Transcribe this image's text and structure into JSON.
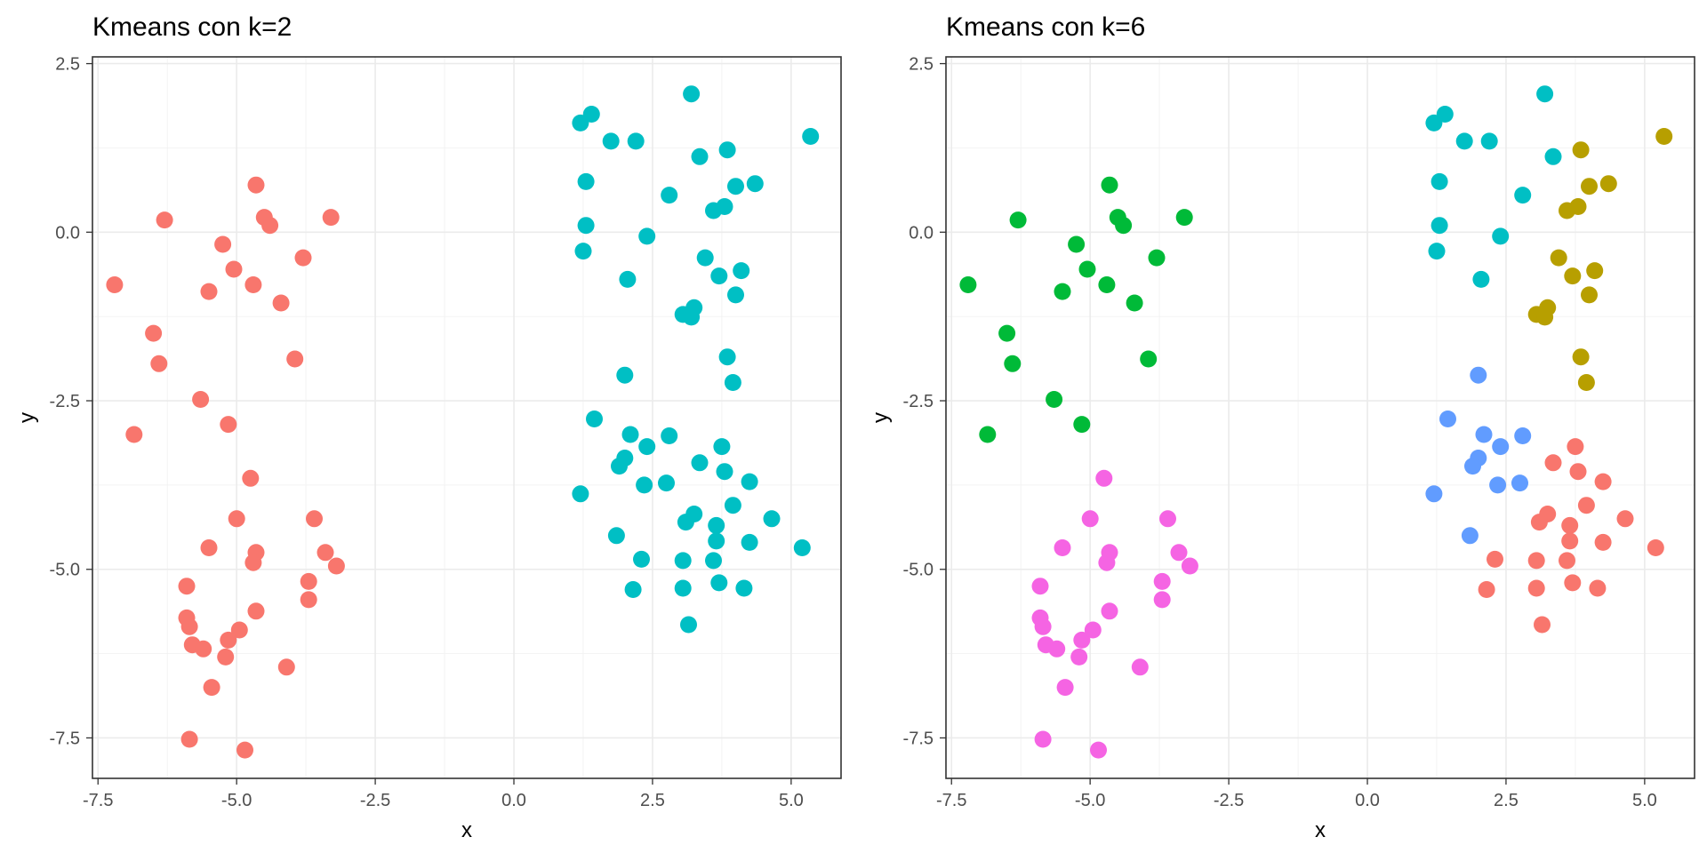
{
  "chart_data": [
    {
      "type": "scatter",
      "title": "Kmeans con k=2",
      "xlabel": "x",
      "ylabel": "y",
      "xlim": [
        -7.6,
        5.9
      ],
      "ylim": [
        -8.1,
        2.6
      ],
      "xticks": [
        -7.5,
        -5.0,
        -2.5,
        0.0,
        2.5,
        5.0
      ],
      "xtick_labels": [
        "-7.5",
        "-5.0",
        "-2.5",
        "0.0",
        "2.5",
        "5.0"
      ],
      "yticks": [
        -7.5,
        -5.0,
        -2.5,
        0.0,
        2.5
      ],
      "ytick_labels": [
        "-7.5",
        "-5.0",
        "-2.5",
        "0.0",
        "2.5"
      ],
      "grid": true,
      "legend": "none",
      "series": [
        {
          "color": "#F8766D",
          "points": [
            [
              -4.65,
              0.7
            ],
            [
              -4.5,
              0.22
            ],
            [
              -4.4,
              0.1
            ],
            [
              -3.3,
              0.22
            ],
            [
              -6.3,
              0.18
            ],
            [
              -5.25,
              -0.18
            ],
            [
              -5.05,
              -0.55
            ],
            [
              -3.8,
              -0.38
            ],
            [
              -7.2,
              -0.78
            ],
            [
              -5.5,
              -0.88
            ],
            [
              -4.7,
              -0.78
            ],
            [
              -4.2,
              -1.05
            ],
            [
              -6.5,
              -1.5
            ],
            [
              -6.4,
              -1.95
            ],
            [
              -3.95,
              -1.88
            ],
            [
              -5.65,
              -2.48
            ],
            [
              -6.85,
              -3.0
            ],
            [
              -5.15,
              -2.85
            ],
            [
              -4.75,
              -3.65
            ],
            [
              -5.0,
              -4.25
            ],
            [
              -3.6,
              -4.25
            ],
            [
              -5.5,
              -4.68
            ],
            [
              -4.65,
              -4.75
            ],
            [
              -4.7,
              -4.9
            ],
            [
              -3.4,
              -4.75
            ],
            [
              -3.7,
              -5.18
            ],
            [
              -3.2,
              -4.95
            ],
            [
              -5.9,
              -5.25
            ],
            [
              -3.7,
              -5.45
            ],
            [
              -4.65,
              -5.62
            ],
            [
              -5.9,
              -5.72
            ],
            [
              -5.85,
              -5.85
            ],
            [
              -4.95,
              -5.9
            ],
            [
              -5.15,
              -6.05
            ],
            [
              -5.8,
              -6.12
            ],
            [
              -5.6,
              -6.18
            ],
            [
              -5.2,
              -6.3
            ],
            [
              -4.1,
              -6.45
            ],
            [
              -5.45,
              -6.75
            ],
            [
              -5.85,
              -7.52
            ],
            [
              -4.85,
              -7.68
            ]
          ]
        },
        {
          "color": "#00BFC4",
          "points": [
            [
              3.2,
              2.05
            ],
            [
              1.4,
              1.75
            ],
            [
              1.2,
              1.62
            ],
            [
              1.75,
              1.35
            ],
            [
              2.2,
              1.35
            ],
            [
              5.35,
              1.42
            ],
            [
              3.85,
              1.22
            ],
            [
              3.35,
              1.12
            ],
            [
              1.3,
              0.75
            ],
            [
              4.0,
              0.68
            ],
            [
              4.35,
              0.72
            ],
            [
              2.8,
              0.55
            ],
            [
              3.8,
              0.38
            ],
            [
              3.6,
              0.32
            ],
            [
              1.3,
              0.1
            ],
            [
              2.4,
              -0.06
            ],
            [
              1.25,
              -0.28
            ],
            [
              3.45,
              -0.38
            ],
            [
              3.7,
              -0.65
            ],
            [
              4.1,
              -0.57
            ],
            [
              2.05,
              -0.7
            ],
            [
              4.0,
              -0.93
            ],
            [
              3.05,
              -1.22
            ],
            [
              3.25,
              -1.12
            ],
            [
              3.2,
              -1.26
            ],
            [
              3.85,
              -1.85
            ],
            [
              2.0,
              -2.12
            ],
            [
              3.95,
              -2.23
            ],
            [
              1.45,
              -2.77
            ],
            [
              2.8,
              -3.02
            ],
            [
              2.1,
              -3.0
            ],
            [
              2.4,
              -3.18
            ],
            [
              3.75,
              -3.18
            ],
            [
              2.0,
              -3.35
            ],
            [
              1.9,
              -3.47
            ],
            [
              3.35,
              -3.42
            ],
            [
              3.8,
              -3.55
            ],
            [
              2.35,
              -3.75
            ],
            [
              2.75,
              -3.72
            ],
            [
              4.25,
              -3.7
            ],
            [
              1.2,
              -3.88
            ],
            [
              3.95,
              -4.05
            ],
            [
              3.25,
              -4.18
            ],
            [
              4.65,
              -4.25
            ],
            [
              3.1,
              -4.3
            ],
            [
              3.65,
              -4.35
            ],
            [
              1.85,
              -4.5
            ],
            [
              3.65,
              -4.58
            ],
            [
              4.25,
              -4.6
            ],
            [
              5.2,
              -4.68
            ],
            [
              2.3,
              -4.85
            ],
            [
              3.05,
              -4.87
            ],
            [
              3.6,
              -4.87
            ],
            [
              3.7,
              -5.2
            ],
            [
              2.15,
              -5.3
            ],
            [
              3.05,
              -5.28
            ],
            [
              4.15,
              -5.28
            ],
            [
              3.15,
              -5.82
            ]
          ]
        }
      ]
    },
    {
      "type": "scatter",
      "title": "Kmeans con k=6",
      "xlabel": "x",
      "ylabel": "y",
      "xlim": [
        -7.6,
        5.9
      ],
      "ylim": [
        -8.1,
        2.6
      ],
      "xticks": [
        -7.5,
        -5.0,
        -2.5,
        0.0,
        2.5,
        5.0
      ],
      "xtick_labels": [
        "-7.5",
        "-5.0",
        "-2.5",
        "0.0",
        "2.5",
        "5.0"
      ],
      "yticks": [
        -7.5,
        -5.0,
        -2.5,
        0.0,
        2.5
      ],
      "ytick_labels": [
        "-7.5",
        "-5.0",
        "-2.5",
        "0.0",
        "2.5"
      ],
      "grid": true,
      "legend": "none",
      "series": [
        {
          "color": "#00BA38",
          "points": [
            [
              -4.65,
              0.7
            ],
            [
              -4.5,
              0.22
            ],
            [
              -4.4,
              0.1
            ],
            [
              -3.3,
              0.22
            ],
            [
              -6.3,
              0.18
            ],
            [
              -5.25,
              -0.18
            ],
            [
              -5.05,
              -0.55
            ],
            [
              -3.8,
              -0.38
            ],
            [
              -7.2,
              -0.78
            ],
            [
              -5.5,
              -0.88
            ],
            [
              -4.7,
              -0.78
            ],
            [
              -4.2,
              -1.05
            ],
            [
              -6.5,
              -1.5
            ],
            [
              -6.4,
              -1.95
            ],
            [
              -3.95,
              -1.88
            ],
            [
              -5.65,
              -2.48
            ],
            [
              -6.85,
              -3.0
            ],
            [
              -5.15,
              -2.85
            ]
          ]
        },
        {
          "color": "#F564E3",
          "points": [
            [
              -4.75,
              -3.65
            ],
            [
              -5.0,
              -4.25
            ],
            [
              -3.6,
              -4.25
            ],
            [
              -5.5,
              -4.68
            ],
            [
              -4.65,
              -4.75
            ],
            [
              -4.7,
              -4.9
            ],
            [
              -3.4,
              -4.75
            ],
            [
              -3.7,
              -5.18
            ],
            [
              -3.2,
              -4.95
            ],
            [
              -5.9,
              -5.25
            ],
            [
              -3.7,
              -5.45
            ],
            [
              -4.65,
              -5.62
            ],
            [
              -5.9,
              -5.72
            ],
            [
              -5.85,
              -5.85
            ],
            [
              -4.95,
              -5.9
            ],
            [
              -5.15,
              -6.05
            ],
            [
              -5.8,
              -6.12
            ],
            [
              -5.6,
              -6.18
            ],
            [
              -5.2,
              -6.3
            ],
            [
              -4.1,
              -6.45
            ],
            [
              -5.45,
              -6.75
            ],
            [
              -5.85,
              -7.52
            ],
            [
              -4.85,
              -7.68
            ]
          ]
        },
        {
          "color": "#00BFC4",
          "points": [
            [
              3.2,
              2.05
            ],
            [
              1.4,
              1.75
            ],
            [
              1.2,
              1.62
            ],
            [
              1.75,
              1.35
            ],
            [
              2.2,
              1.35
            ],
            [
              3.35,
              1.12
            ],
            [
              1.3,
              0.75
            ],
            [
              2.8,
              0.55
            ],
            [
              1.3,
              0.1
            ],
            [
              2.4,
              -0.06
            ],
            [
              1.25,
              -0.28
            ],
            [
              2.05,
              -0.7
            ]
          ]
        },
        {
          "color": "#B79F00",
          "points": [
            [
              5.35,
              1.42
            ],
            [
              3.85,
              1.22
            ],
            [
              4.0,
              0.68
            ],
            [
              4.35,
              0.72
            ],
            [
              3.8,
              0.38
            ],
            [
              3.6,
              0.32
            ],
            [
              3.45,
              -0.38
            ],
            [
              3.7,
              -0.65
            ],
            [
              4.1,
              -0.57
            ],
            [
              4.0,
              -0.93
            ],
            [
              3.05,
              -1.22
            ],
            [
              3.25,
              -1.12
            ],
            [
              3.2,
              -1.26
            ],
            [
              3.85,
              -1.85
            ],
            [
              3.95,
              -2.23
            ]
          ]
        },
        {
          "color": "#619CFF",
          "points": [
            [
              2.0,
              -2.12
            ],
            [
              1.45,
              -2.77
            ],
            [
              2.8,
              -3.02
            ],
            [
              2.1,
              -3.0
            ],
            [
              2.4,
              -3.18
            ],
            [
              2.0,
              -3.35
            ],
            [
              1.9,
              -3.47
            ],
            [
              2.35,
              -3.75
            ],
            [
              2.75,
              -3.72
            ],
            [
              1.2,
              -3.88
            ],
            [
              1.85,
              -4.5
            ]
          ]
        },
        {
          "color": "#F8766D",
          "points": [
            [
              3.75,
              -3.18
            ],
            [
              3.35,
              -3.42
            ],
            [
              3.8,
              -3.55
            ],
            [
              4.25,
              -3.7
            ],
            [
              3.95,
              -4.05
            ],
            [
              3.25,
              -4.18
            ],
            [
              4.65,
              -4.25
            ],
            [
              3.1,
              -4.3
            ],
            [
              3.65,
              -4.35
            ],
            [
              3.65,
              -4.58
            ],
            [
              4.25,
              -4.6
            ],
            [
              5.2,
              -4.68
            ],
            [
              2.3,
              -4.85
            ],
            [
              3.05,
              -4.87
            ],
            [
              3.6,
              -4.87
            ],
            [
              3.7,
              -5.2
            ],
            [
              2.15,
              -5.3
            ],
            [
              3.05,
              -5.28
            ],
            [
              4.15,
              -5.28
            ],
            [
              3.15,
              -5.82
            ]
          ]
        }
      ]
    }
  ]
}
